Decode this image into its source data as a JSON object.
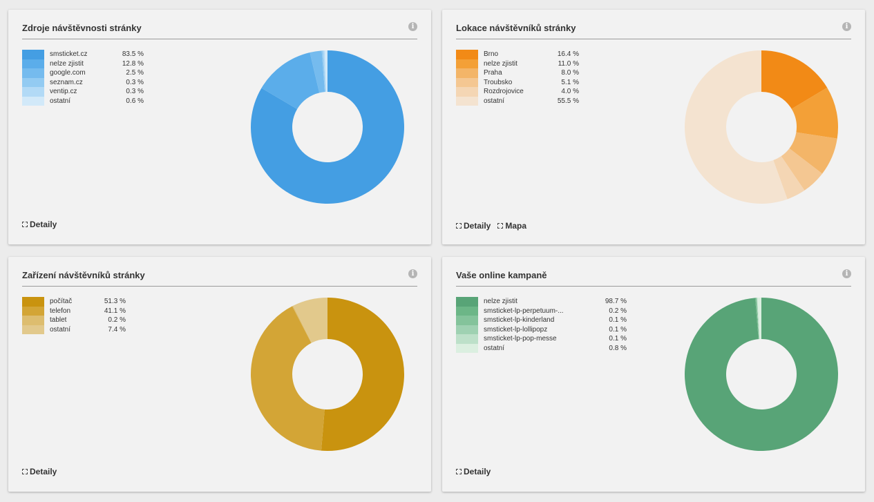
{
  "cards": [
    {
      "title": "Zdroje návštěvnosti stránky",
      "info_icon": "info-icon",
      "links": [
        {
          "label": "Detaily",
          "icon": "expand-icon"
        }
      ],
      "legend": [
        {
          "label": "smsticket.cz",
          "value": "83.5 %",
          "num": 83.5,
          "color": "#449ee3"
        },
        {
          "label": "nelze zjistit",
          "value": "12.8 %",
          "num": 12.8,
          "color": "#5badea"
        },
        {
          "label": "google.com",
          "value": "2.5 %",
          "num": 2.5,
          "color": "#75bbee"
        },
        {
          "label": "seznam.cz",
          "value": "0.3 %",
          "num": 0.3,
          "color": "#93cbf2"
        },
        {
          "label": "ventip.cz",
          "value": "0.3 %",
          "num": 0.3,
          "color": "#b2daf6"
        },
        {
          "label": "ostatní",
          "value": "0.6 %",
          "num": 0.6,
          "color": "#d2e9f9"
        }
      ]
    },
    {
      "title": "Lokace návštěvníků stránky",
      "info_icon": "info-icon",
      "links": [
        {
          "label": "Detaily",
          "icon": "expand-icon"
        },
        {
          "label": "Mapa",
          "icon": "expand-icon"
        }
      ],
      "legend": [
        {
          "label": "Brno",
          "value": "16.4 %",
          "num": 16.4,
          "color": "#f28a16"
        },
        {
          "label": "nelze zjistit",
          "value": "11.0 %",
          "num": 11.0,
          "color": "#f3a037"
        },
        {
          "label": "Praha",
          "value": "8.0 %",
          "num": 8.0,
          "color": "#f3b568"
        },
        {
          "label": "Troubsko",
          "value": "5.1 %",
          "num": 5.1,
          "color": "#f4c792"
        },
        {
          "label": "Rozdrojovice",
          "value": "4.0 %",
          "num": 4.0,
          "color": "#f4d6b4"
        },
        {
          "label": "ostatní",
          "value": "55.5 %",
          "num": 55.5,
          "color": "#f4e3d0"
        }
      ]
    },
    {
      "title": "Zařízení návštěvníků stránky",
      "info_icon": "info-icon",
      "links": [
        {
          "label": "Detaily",
          "icon": "expand-icon"
        }
      ],
      "legend": [
        {
          "label": "počítač",
          "value": "51.3 %",
          "num": 51.3,
          "color": "#c9930f"
        },
        {
          "label": "telefon",
          "value": "41.1 %",
          "num": 41.1,
          "color": "#d3a536"
        },
        {
          "label": "tablet",
          "value": "0.2 %",
          "num": 0.2,
          "color": "#ddbd6f"
        },
        {
          "label": "ostatní",
          "value": "7.4 %",
          "num": 7.4,
          "color": "#e2c98c"
        }
      ]
    },
    {
      "title": "Vaše online kampaně",
      "info_icon": "info-icon",
      "links": [
        {
          "label": "Detaily",
          "icon": "expand-icon"
        }
      ],
      "legend": [
        {
          "label": "nelze zjistit",
          "value": "98.7 %",
          "num": 98.7,
          "color": "#58a477"
        },
        {
          "label": "smsticket-lp-perpetuum-...",
          "value": "0.2 %",
          "num": 0.2,
          "color": "#6cb687"
        },
        {
          "label": "smsticket-lp-kinderland",
          "value": "0.1 %",
          "num": 0.1,
          "color": "#84c39b"
        },
        {
          "label": "smsticket-lp-lollipopz",
          "value": "0.1 %",
          "num": 0.1,
          "color": "#9fd1b2"
        },
        {
          "label": "smsticket-lp-pop-messe",
          "value": "0.1 %",
          "num": 0.1,
          "color": "#bde0c9"
        },
        {
          "label": "ostatní",
          "value": "0.8 %",
          "num": 0.8,
          "color": "#dbefe0"
        }
      ]
    }
  ]
}
